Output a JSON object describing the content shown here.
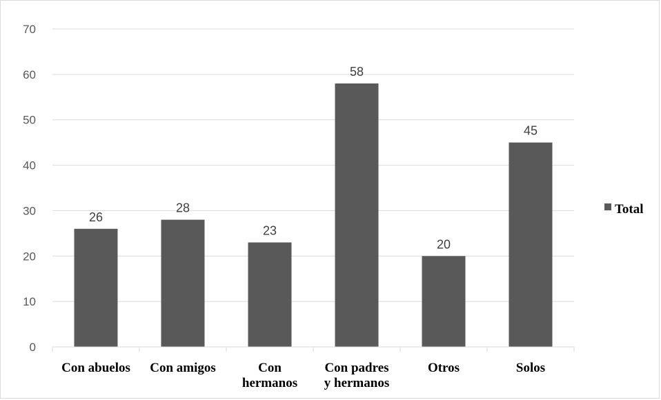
{
  "chart_data": {
    "type": "bar",
    "categories": [
      [
        "Con abuelos"
      ],
      [
        "Con amigos"
      ],
      [
        "Con",
        "hermanos"
      ],
      [
        "Con padres",
        "y hermanos"
      ],
      [
        "Otros"
      ],
      [
        "Solos"
      ]
    ],
    "series": [
      {
        "name": "Total",
        "values": [
          26,
          28,
          23,
          58,
          20,
          45
        ],
        "color": "#595959"
      }
    ],
    "data_labels": [
      "26",
      "28",
      "23",
      "58",
      "20",
      "45"
    ],
    "y_ticks": [
      "0",
      "10",
      "20",
      "30",
      "40",
      "50",
      "60",
      "70"
    ],
    "ylim": [
      0,
      70
    ],
    "grid": true,
    "legend_position": "right",
    "title": "",
    "xlabel": "",
    "ylabel": ""
  }
}
